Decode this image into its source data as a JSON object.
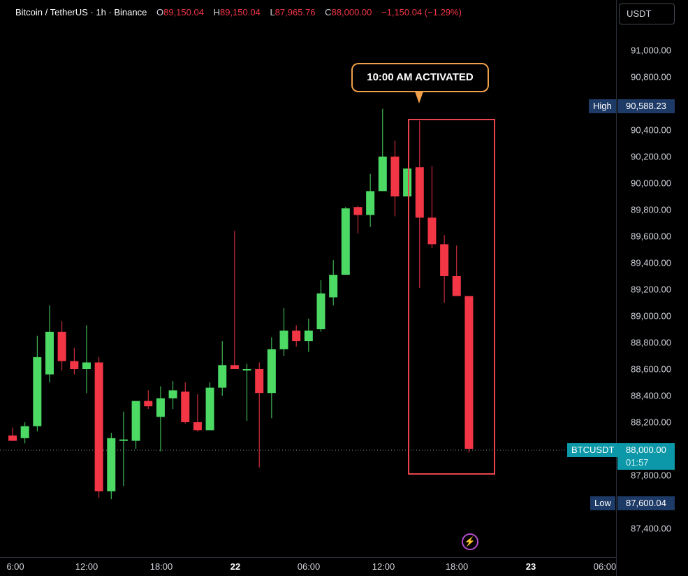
{
  "header": {
    "symbol": "Bitcoin / TetherUS · 1h · Binance",
    "open_key": "O",
    "open": "89,150.04",
    "high_key": "H",
    "high": "89,150.04",
    "low_key": "L",
    "low": "87,965.76",
    "close_key": "C",
    "close": "88,000.00",
    "change": "−1,150.04 (−1.29%)"
  },
  "currency": "USDT",
  "price_axis": {
    "ticks": [
      "91,000.00",
      "90,800.00",
      "90,400.00",
      "90,200.00",
      "90,000.00",
      "89,800.00",
      "89,600.00",
      "89,400.00",
      "89,200.00",
      "89,000.00",
      "88,800.00",
      "88,600.00",
      "88,400.00",
      "88,200.00",
      "87,800.00",
      "87,400.00"
    ]
  },
  "tags": {
    "high_label": "High",
    "high_value": "90,588.23",
    "low_label": "Low",
    "low_value": "87,600.04",
    "symbol_label": "BTCUSDT",
    "last_price": "88,000.00",
    "countdown": "01:57"
  },
  "time_axis": {
    "labels": [
      "6:00",
      "12:00",
      "18:00",
      "22",
      "06:00",
      "12:00",
      "18:00",
      "23",
      "06:00"
    ]
  },
  "annotation": {
    "text": "10:00 AM ACTIVATED"
  },
  "colors": {
    "up": "#4cd964",
    "down": "#f23645",
    "background": "#000000",
    "callout_border": "#f0a04b",
    "box_border": "#e8454e",
    "price_tag": "#0c98a8",
    "high_low_tag": "#1e3a66"
  },
  "icons": {
    "bolt": "lightning-bolt-icon"
  },
  "chart_data": {
    "type": "candlestick",
    "ylim": [
      87250,
      91160
    ],
    "series": [
      {
        "o": 88100,
        "h": 88160,
        "l": 88060,
        "c": 88060
      },
      {
        "o": 88080,
        "h": 88200,
        "l": 88040,
        "c": 88170
      },
      {
        "o": 88170,
        "h": 88850,
        "l": 88130,
        "c": 88690
      },
      {
        "o": 88560,
        "h": 89080,
        "l": 88500,
        "c": 88880
      },
      {
        "o": 88880,
        "h": 88960,
        "l": 88590,
        "c": 88660
      },
      {
        "o": 88660,
        "h": 88760,
        "l": 88560,
        "c": 88600
      },
      {
        "o": 88600,
        "h": 88930,
        "l": 88420,
        "c": 88650
      },
      {
        "o": 88650,
        "h": 88690,
        "l": 87630,
        "c": 87680
      },
      {
        "o": 87680,
        "h": 88120,
        "l": 87620,
        "c": 88080
      },
      {
        "o": 88060,
        "h": 88280,
        "l": 87720,
        "c": 88070
      },
      {
        "o": 88060,
        "h": 88350,
        "l": 88000,
        "c": 88360
      },
      {
        "o": 88360,
        "h": 88440,
        "l": 88300,
        "c": 88320
      },
      {
        "o": 88240,
        "h": 88470,
        "l": 87980,
        "c": 88380
      },
      {
        "o": 88380,
        "h": 88510,
        "l": 88300,
        "c": 88440
      },
      {
        "o": 88430,
        "h": 88500,
        "l": 88190,
        "c": 88200
      },
      {
        "o": 88200,
        "h": 88410,
        "l": 88130,
        "c": 88140
      },
      {
        "o": 88140,
        "h": 88500,
        "l": 88140,
        "c": 88460
      },
      {
        "o": 88460,
        "h": 88810,
        "l": 88400,
        "c": 88630
      },
      {
        "o": 88630,
        "h": 89640,
        "l": 88610,
        "c": 88600
      },
      {
        "o": 88600,
        "h": 88640,
        "l": 88210,
        "c": 88600
      },
      {
        "o": 88600,
        "h": 88650,
        "l": 87860,
        "c": 88420
      },
      {
        "o": 88420,
        "h": 88840,
        "l": 88230,
        "c": 88750
      },
      {
        "o": 88750,
        "h": 89060,
        "l": 88700,
        "c": 88890
      },
      {
        "o": 88890,
        "h": 88930,
        "l": 88770,
        "c": 88810
      },
      {
        "o": 88810,
        "h": 88980,
        "l": 88730,
        "c": 88890
      },
      {
        "o": 88900,
        "h": 89270,
        "l": 88880,
        "c": 89170
      },
      {
        "o": 89140,
        "h": 89420,
        "l": 89080,
        "c": 89310
      },
      {
        "o": 89310,
        "h": 89820,
        "l": 89320,
        "c": 89810
      },
      {
        "o": 89820,
        "h": 89830,
        "l": 89620,
        "c": 89760
      },
      {
        "o": 89760,
        "h": 90070,
        "l": 89670,
        "c": 89940
      },
      {
        "o": 89940,
        "h": 90560,
        "l": 89960,
        "c": 90200
      },
      {
        "o": 90200,
        "h": 90320,
        "l": 89750,
        "c": 89900
      },
      {
        "o": 89900,
        "h": 90090,
        "l": 89900,
        "c": 90110
      },
      {
        "o": 90120,
        "h": 90470,
        "l": 89210,
        "c": 89740
      },
      {
        "o": 89740,
        "h": 90130,
        "l": 89510,
        "c": 89540
      },
      {
        "o": 89540,
        "h": 89610,
        "l": 89100,
        "c": 89300
      },
      {
        "o": 89300,
        "h": 89530,
        "l": 89180,
        "c": 89150
      },
      {
        "o": 89150,
        "h": 89150,
        "l": 87970,
        "c": 88000
      }
    ]
  }
}
